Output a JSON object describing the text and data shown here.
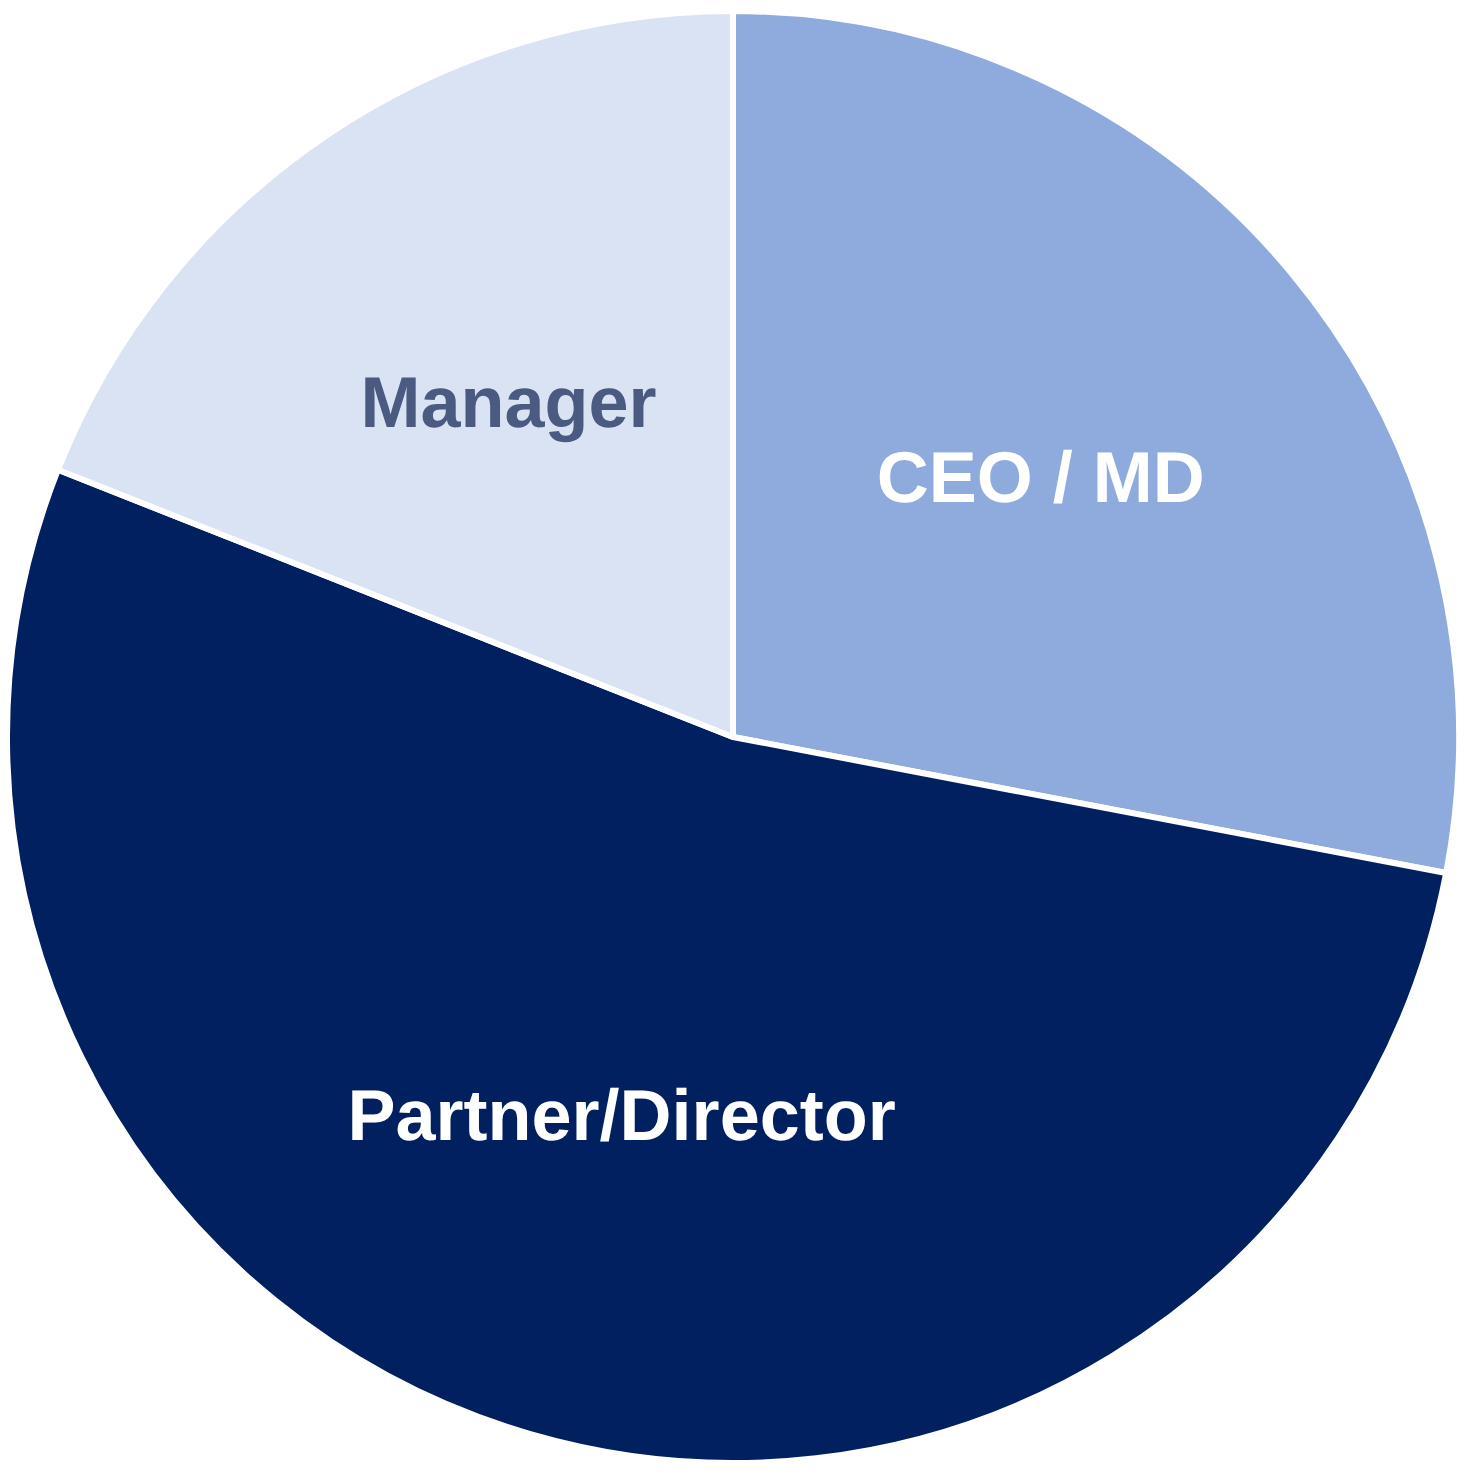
{
  "chart_data": {
    "type": "pie",
    "categories": [
      "CEO / MD",
      "Partner/Director",
      "Manager"
    ],
    "values": [
      28,
      53,
      19
    ],
    "colors": [
      "#8faadc",
      "#002060",
      "#dae3f3"
    ]
  }
}
